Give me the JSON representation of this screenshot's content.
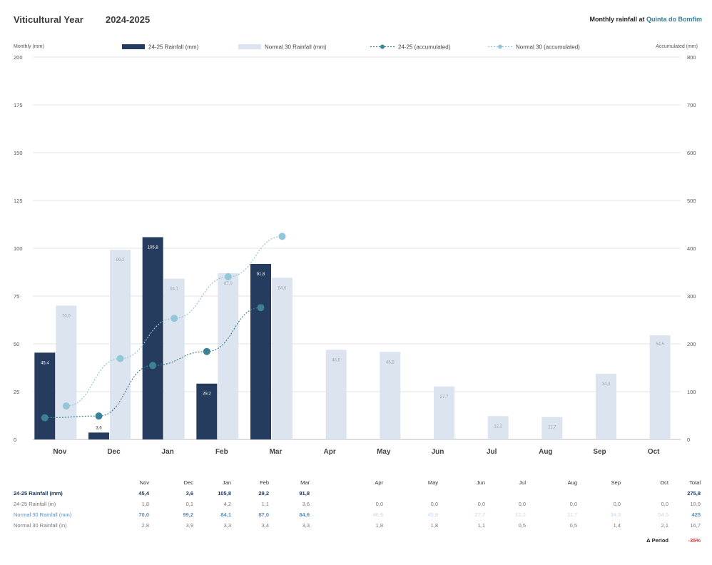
{
  "header": {
    "title": "Viticultural Year",
    "year": "2024-2025",
    "subtitle_prefix": "Monthly rainfall at",
    "subtitle_place": "Quinta do Bomfim"
  },
  "chart_data": {
    "type": "bar",
    "categories": [
      "Nov",
      "Dec",
      "Jan",
      "Feb",
      "Mar",
      "Apr",
      "May",
      "Jun",
      "Jul",
      "Aug",
      "Sep",
      "Oct"
    ],
    "left_axis_label": "Monthly (mm)",
    "right_axis_label": "Accumulated (mm)",
    "ylim": [
      0,
      200
    ],
    "y2lim": [
      0,
      800
    ],
    "yticks": [
      0,
      25,
      50,
      75,
      100,
      125,
      150,
      175,
      200
    ],
    "y2ticks": [
      0,
      100,
      200,
      300,
      400,
      500,
      600,
      700,
      800
    ],
    "grid": true,
    "legend_position": "top",
    "series": [
      {
        "name": "24-25  Rainfall (mm)",
        "kind": "bar",
        "color": "#253c5e",
        "values": [
          45.4,
          3.6,
          105.8,
          29.2,
          91.8,
          null,
          null,
          null,
          null,
          null,
          null,
          null
        ],
        "labels": [
          "45,4",
          "3,6",
          "105,8",
          "29,2",
          "91,8",
          "",
          "",
          "",
          "",
          "",
          "",
          ""
        ]
      },
      {
        "name": "Normal 30 Rainfall (mm)",
        "kind": "bar",
        "color": "#dce4ef",
        "values": [
          70.0,
          99.2,
          84.1,
          87.0,
          84.6,
          46.9,
          45.8,
          27.7,
          12.2,
          11.7,
          34.3,
          54.5
        ],
        "labels": [
          "70,0",
          "99,2",
          "84,1",
          "87,0",
          "84,6",
          "46,9",
          "45,8",
          "27,7",
          "12,2",
          "11,7",
          "34,3",
          "54,5"
        ]
      },
      {
        "name": "24-25 (accumulated)",
        "kind": "line",
        "axis": "right",
        "color": "#3c8196",
        "values": [
          45.4,
          49.0,
          154.8,
          184.0,
          275.8,
          null,
          null,
          null,
          null,
          null,
          null,
          null
        ]
      },
      {
        "name": "Normal 30 (accumulated)",
        "kind": "line",
        "axis": "right",
        "color": "#93c6d6",
        "values": [
          70.0,
          169.2,
          253.3,
          340.3,
          424.9,
          null,
          null,
          null,
          null,
          null,
          null,
          null
        ]
      }
    ]
  },
  "table": {
    "header": [
      "Nov",
      "Dec",
      "Jan",
      "Feb",
      "Mar",
      "Apr",
      "May",
      "Jun",
      "Jul",
      "Aug",
      "Sep",
      "Oct",
      "Total"
    ],
    "rows": [
      {
        "label": "24-25  Rainfall (mm)",
        "cls": "r-rain",
        "values": [
          "45,4",
          "3,6",
          "105,8",
          "29,2",
          "91,8",
          "",
          "",
          "",
          "",
          "",
          "",
          "",
          "275,8"
        ]
      },
      {
        "label": "24-25  Rainfall (in)",
        "cls": "r-in",
        "values": [
          "1,8",
          "0,1",
          "4,2",
          "1,1",
          "3,6",
          "0,0",
          "0,0",
          "0,0",
          "0,0",
          "0,0",
          "0,0",
          "0,0",
          "10,9"
        ]
      },
      {
        "label": "Normal 30 Rainfall (mm)",
        "cls": "r-norm",
        "values": [
          "70,0",
          "99,2",
          "84,1",
          "87,0",
          "84,6",
          "46,9",
          "45,8",
          "27,7",
          "12,2",
          "11,7",
          "34,3",
          "54,5",
          "425"
        ]
      },
      {
        "label": "Normal 30 Rainfall (in)",
        "cls": "r-normin",
        "values": [
          "2,8",
          "3,9",
          "3,3",
          "3,4",
          "3,3",
          "1,8",
          "1,8",
          "1,1",
          "0,5",
          "0,5",
          "1,4",
          "2,1",
          "16,7"
        ]
      }
    ],
    "delta_label": "Δ Period",
    "delta_value": "-35%"
  }
}
